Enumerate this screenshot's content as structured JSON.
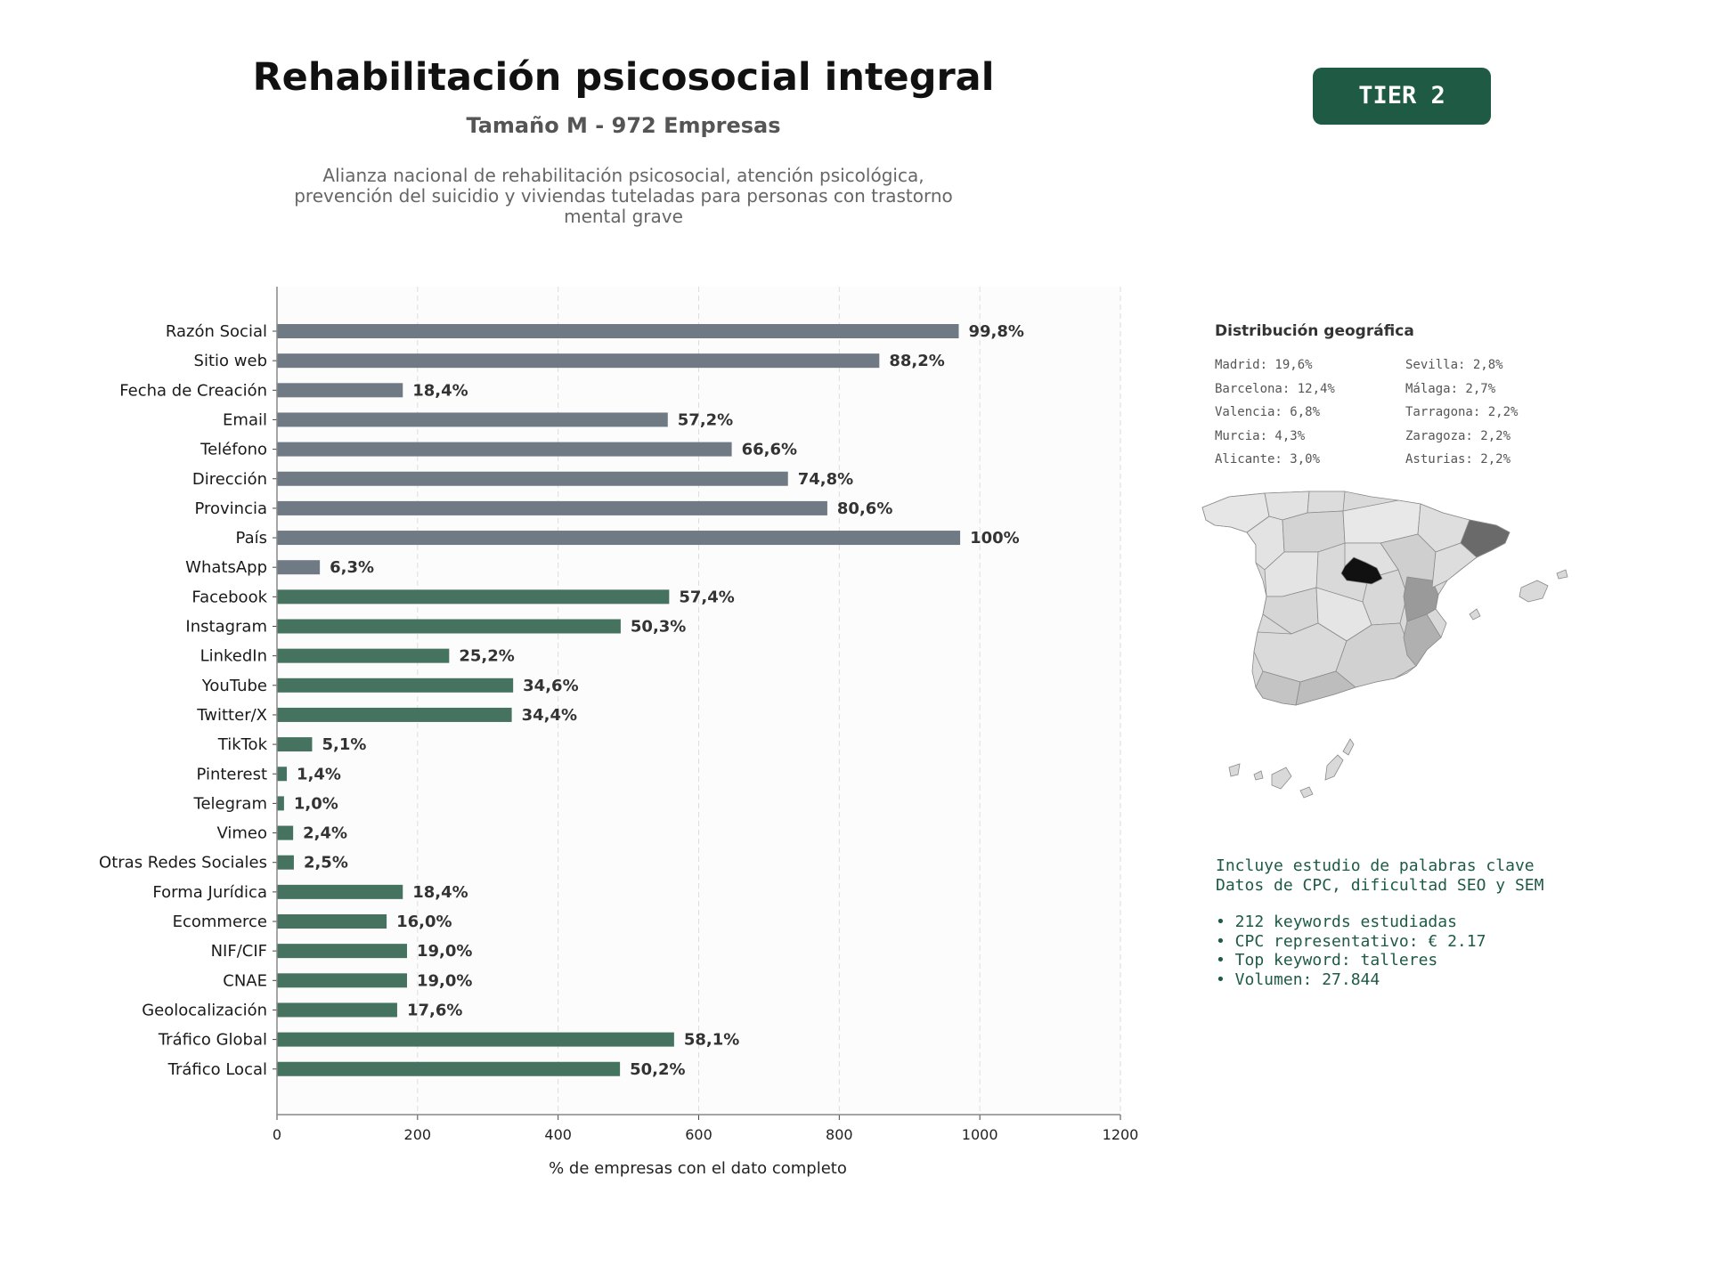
{
  "header": {
    "title": "Rehabilitación psicosocial integral",
    "subtitle": "Tamaño M - 972 Empresas",
    "description": "Alianza nacional de rehabilitación psicosocial, atención psicológica, prevención del suicidio y viviendas tuteladas para personas con trastorno mental grave",
    "tier": "TIER 2"
  },
  "colors": {
    "gray_bar": "#707a84",
    "green_bar": "#45735f",
    "tier_badge": "#1e5a44",
    "seo_text": "#1e5a44",
    "map_highlight_madrid": "#111111",
    "map_highlight_barcelona": "#6a6a6a",
    "map_highlight_valencia": "#9a9a9a"
  },
  "chart_data": {
    "type": "bar",
    "orientation": "horizontal",
    "xlabel": "% de empresas con el dato completo",
    "ylabel": "",
    "xlim": [
      0,
      1200
    ],
    "xticks": [
      0,
      200,
      400,
      600,
      800,
      1000,
      1200
    ],
    "grid": true,
    "categories": [
      "Razón Social",
      "Sitio web",
      "Fecha de Creación",
      "Email",
      "Teléfono",
      "Dirección",
      "Provincia",
      "País",
      "WhatsApp",
      "Facebook",
      "Instagram",
      "LinkedIn",
      "YouTube",
      "Twitter/X",
      "TikTok",
      "Pinterest",
      "Telegram",
      "Vimeo",
      "Otras Redes Sociales",
      "Forma Jurídica",
      "Ecommerce",
      "NIF/CIF",
      "CNAE",
      "Geolocalización",
      "Tráfico Global",
      "Tráfico Local"
    ],
    "values": [
      970,
      857,
      179,
      556,
      647,
      727,
      783,
      972,
      61,
      558,
      489,
      245,
      336,
      334,
      50,
      14,
      10,
      23,
      24,
      179,
      156,
      185,
      185,
      171,
      565,
      488
    ],
    "labels": [
      "99,8%",
      "88,2%",
      "18,4%",
      "57,2%",
      "66,6%",
      "74,8%",
      "80,6%",
      "100%",
      "6,3%",
      "57,4%",
      "50,3%",
      "25,2%",
      "34,6%",
      "34,4%",
      "5,1%",
      "1,4%",
      "1,0%",
      "2,4%",
      "2,5%",
      "18,4%",
      "16,0%",
      "19,0%",
      "19,0%",
      "17,6%",
      "58,1%",
      "50,2%"
    ],
    "groups": [
      "gray",
      "gray",
      "gray",
      "gray",
      "gray",
      "gray",
      "gray",
      "gray",
      "gray",
      "green",
      "green",
      "green",
      "green",
      "green",
      "green",
      "green",
      "green",
      "green",
      "green",
      "green",
      "green",
      "green",
      "green",
      "green",
      "green",
      "green"
    ]
  },
  "geo": {
    "title": "Distribución geográfica",
    "col1": [
      "Madrid: 19,6%",
      "Barcelona: 12,4%",
      "Valencia: 6,8%",
      "Murcia: 4,3%",
      "Alicante: 3,0%"
    ],
    "col2": [
      "Sevilla: 2,8%",
      "Málaga: 2,7%",
      "Tarragona: 2,2%",
      "Zaragoza: 2,2%",
      "Asturias: 2,2%"
    ]
  },
  "seo": {
    "line1": "Incluye estudio de palabras clave",
    "line2": "Datos de CPC, dificultad SEO y SEM",
    "bullet1": "• 212 keywords estudiadas",
    "bullet2": "• CPC representativo: € 2.17",
    "bullet3": "• Top keyword: talleres",
    "bullet4": "• Volumen: 27.844"
  }
}
